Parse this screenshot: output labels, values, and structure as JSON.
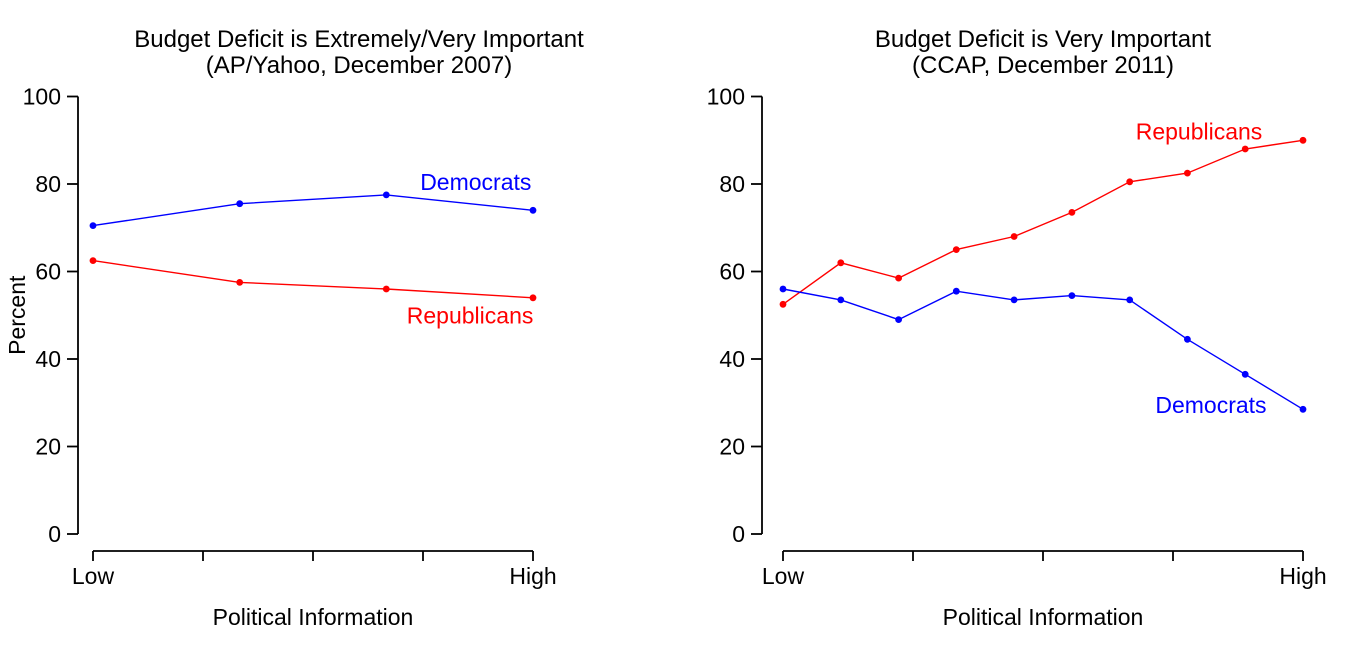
{
  "figure": {
    "background": "#FFFFFF",
    "text_color": "#000000"
  },
  "chart_data": [
    {
      "type": "line",
      "title": "Budget Deficit is Extremely/Very Important",
      "subtitle": "(AP/Yahoo, December 2007)",
      "xlabel": "Political Information",
      "ylabel": "Percent",
      "ylim": [
        0,
        100
      ],
      "y_ticks": [
        0,
        20,
        40,
        60,
        80,
        100
      ],
      "x_tick_labels": [
        "Low",
        "",
        "",
        "",
        "High"
      ],
      "grid": false,
      "legend_position": "inline-labels",
      "series": [
        {
          "name": "Democrats",
          "color": "#0000FF",
          "values": [
            70.5,
            75.5,
            77.5,
            74
          ],
          "label_pos": {
            "x_frac": 0.87,
            "y_value": 80.5
          }
        },
        {
          "name": "Republicans",
          "color": "#FF0000",
          "values": [
            62.5,
            57.5,
            56,
            54
          ],
          "label_pos": {
            "x_frac": 0.857,
            "y_value": 50
          }
        }
      ]
    },
    {
      "type": "line",
      "title": "Budget Deficit is Very Important",
      "subtitle": "(CCAP, December 2011)",
      "xlabel": "Political Information",
      "ylabel": "",
      "ylim": [
        0,
        100
      ],
      "y_ticks": [
        0,
        20,
        40,
        60,
        80,
        100
      ],
      "x_tick_labels": [
        "Low",
        "",
        "",
        "",
        "High"
      ],
      "grid": false,
      "legend_position": "inline-labels",
      "series": [
        {
          "name": "Republicans",
          "color": "#FF0000",
          "values": [
            52.5,
            62,
            58.5,
            65,
            68,
            73.5,
            80.5,
            82.5,
            88,
            90
          ],
          "label_pos": {
            "x_frac": 0.8,
            "y_value": 92
          }
        },
        {
          "name": "Democrats",
          "color": "#0000FF",
          "values": [
            56,
            53.5,
            49,
            55.5,
            53.5,
            54.5,
            53.5,
            44.5,
            36.5,
            28.5
          ],
          "label_pos": {
            "x_frac": 0.823,
            "y_value": 29.5
          }
        }
      ]
    }
  ]
}
